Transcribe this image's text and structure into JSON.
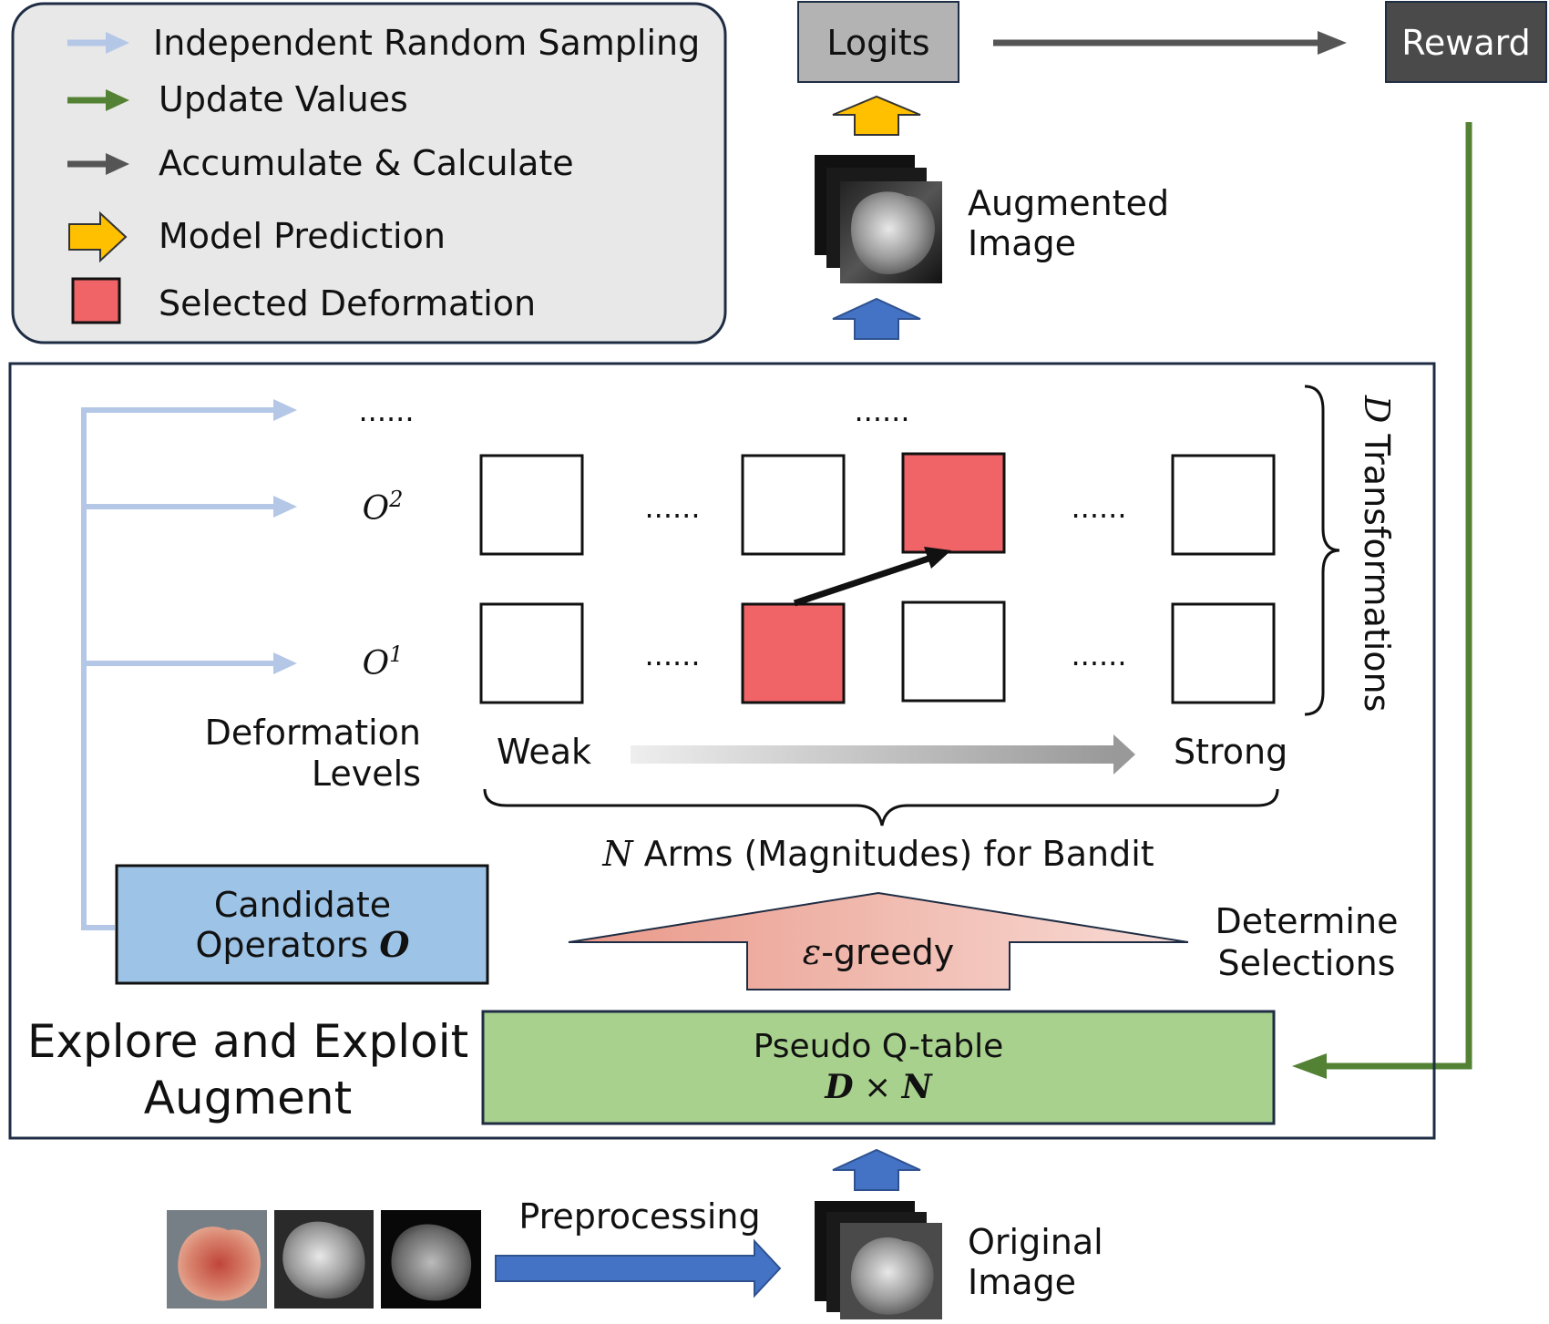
{
  "colors": {
    "legend_bg": "#e8e8e8",
    "legend_border": "#1f2d44",
    "random_arrow": "#b4c7e7",
    "update_arrow": "#548235",
    "accumulate_arrow": "#555555",
    "prediction_arrow": "#ffc000",
    "selected": "#f06366",
    "logits_bg": "#b3b3b3",
    "reward_bg": "#4a4a4a",
    "candidate_bg": "#9dc3e6",
    "qtable_bg": "#a9d18e",
    "blue_arrow": "#4472c4"
  },
  "legend": {
    "items": [
      {
        "icon": "light-blue-arrow-icon",
        "label": "Independent Random Sampling"
      },
      {
        "icon": "green-arrow-icon",
        "label": "Update Values"
      },
      {
        "icon": "dark-gray-arrow-icon",
        "label": "Accumulate & Calculate"
      },
      {
        "icon": "yellow-block-arrow-icon",
        "label": "Model Prediction"
      },
      {
        "icon": "red-square-icon",
        "label": "Selected Deformation"
      }
    ]
  },
  "top": {
    "logits": "Logits",
    "reward": "Reward",
    "augmented_line1": "Augmented",
    "augmented_line2": "Image"
  },
  "grid": {
    "dots": "......",
    "row_labels": [
      {
        "base": "O",
        "sup": "2"
      },
      {
        "base": "O",
        "sup": "1"
      }
    ],
    "deformation_line1": "Deformation",
    "deformation_line2": "Levels",
    "weak": "Weak",
    "strong": "Strong",
    "transform_letter": "D",
    "transform_text": " Transformations",
    "arms_letter": "N",
    "arms_text": " Arms (Magnitudes) for Bandit",
    "selected_cells": [
      {
        "row": "O2",
        "column": 3
      },
      {
        "row": "O1",
        "column": 2
      }
    ]
  },
  "candidate": {
    "line1": "Candidate",
    "line2_text": "Operators ",
    "line2_symbol": "O"
  },
  "greedy": {
    "symbol": "ε",
    "text": "-greedy",
    "determine_line1": "Determine",
    "determine_line2": "Selections"
  },
  "qtable": {
    "title": "Pseudo Q-table",
    "dim_d": "D",
    "times": " × ",
    "dim_n": "N"
  },
  "main_title": {
    "line1": "Explore and Exploit",
    "line2": "Augment"
  },
  "bottom": {
    "preprocessing": "Preprocessing",
    "original_line1": "Original",
    "original_line2": "Image"
  }
}
